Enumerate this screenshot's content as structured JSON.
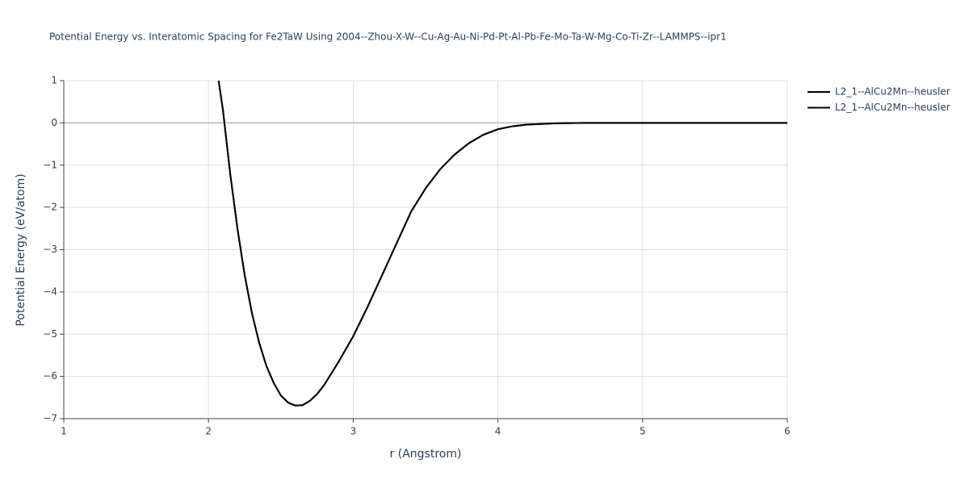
{
  "chart_data": {
    "type": "line",
    "title": "Potential Energy vs. Interatomic Spacing for Fe2TaW Using 2004--Zhou-X-W--Cu-Ag-Au-Ni-Pd-Pt-Al-Pb-Fe-Mo-Ta-W-Mg-Co-Ti-Zr--LAMMPS--ipr1",
    "x_label": "r (Angstrom)",
    "y_label": "Potential Energy (eV/atom)",
    "x": [
      2.07,
      2.1,
      2.15,
      2.2,
      2.25,
      2.3,
      2.35,
      2.4,
      2.45,
      2.5,
      2.55,
      2.6,
      2.65,
      2.7,
      2.75,
      2.8,
      2.9,
      3.0,
      3.1,
      3.2,
      3.3,
      3.4,
      3.5,
      3.6,
      3.7,
      3.8,
      3.9,
      4.0,
      4.1,
      4.2,
      4.4,
      4.6,
      5.0,
      6.0
    ],
    "series": [
      {
        "name": "L2_1--AlCu2Mn--heusler",
        "color": "#000000",
        "values": [
          1.0,
          0.3,
          -1.2,
          -2.5,
          -3.6,
          -4.5,
          -5.2,
          -5.75,
          -6.15,
          -6.45,
          -6.62,
          -6.69,
          -6.68,
          -6.58,
          -6.42,
          -6.2,
          -5.65,
          -5.05,
          -4.35,
          -3.6,
          -2.85,
          -2.1,
          -1.55,
          -1.1,
          -0.75,
          -0.48,
          -0.28,
          -0.15,
          -0.08,
          -0.04,
          -0.01,
          0,
          0,
          0
        ]
      },
      {
        "name": "L2_1--AlCu2Mn--heusler",
        "color": "#000000",
        "values": [
          1.0,
          0.3,
          -1.2,
          -2.5,
          -3.6,
          -4.5,
          -5.2,
          -5.75,
          -6.15,
          -6.45,
          -6.62,
          -6.69,
          -6.68,
          -6.58,
          -6.42,
          -6.2,
          -5.65,
          -5.05,
          -4.35,
          -3.6,
          -2.85,
          -2.1,
          -1.55,
          -1.1,
          -0.75,
          -0.48,
          -0.28,
          -0.15,
          -0.08,
          -0.04,
          -0.01,
          0,
          0,
          0
        ]
      }
    ],
    "xlim": [
      1,
      6
    ],
    "xticks": [
      1,
      2,
      3,
      4,
      5,
      6
    ],
    "ylim": [
      -7,
      1
    ],
    "yticks": [
      {
        "value": -7,
        "label": "−7"
      },
      {
        "value": -6,
        "label": "−6"
      },
      {
        "value": -5,
        "label": "−5"
      },
      {
        "value": -4,
        "label": "−4"
      },
      {
        "value": -3,
        "label": "−3"
      },
      {
        "value": -2,
        "label": "−2"
      },
      {
        "value": -1,
        "label": "−1"
      },
      0,
      1
    ],
    "grid": true
  }
}
